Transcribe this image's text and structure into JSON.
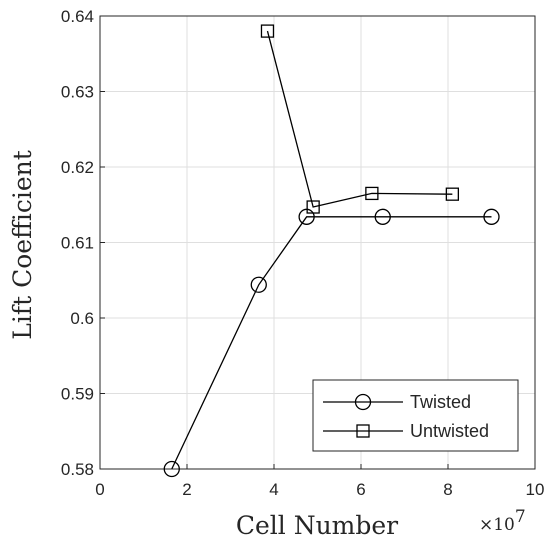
{
  "chart_data": {
    "type": "line",
    "title": "",
    "xlabel": "Cell Number",
    "ylabel": "Lift Coefficient",
    "x_multiplier_label": "×10",
    "x_multiplier_exponent": "7",
    "xlim": [
      0,
      10
    ],
    "ylim": [
      0.58,
      0.64
    ],
    "xticks": [
      0,
      2,
      4,
      6,
      8,
      10
    ],
    "yticks": [
      0.58,
      0.59,
      0.6,
      0.61,
      0.62,
      0.63,
      0.64
    ],
    "xtick_labels": [
      "0",
      "2",
      "4",
      "6",
      "8",
      "10"
    ],
    "ytick_labels": [
      "0.58",
      "0.59",
      "0.6",
      "0.61",
      "0.62",
      "0.63",
      "0.64"
    ],
    "grid": true,
    "legend_position": "bottom-right",
    "series": [
      {
        "name": "Twisted",
        "marker": "circle",
        "color": "#000000",
        "x": [
          1.65,
          3.65,
          4.75,
          6.5,
          9.0
        ],
        "y": [
          0.58,
          0.6044,
          0.6134,
          0.6134,
          0.6134
        ]
      },
      {
        "name": "Untwisted",
        "marker": "square",
        "color": "#000000",
        "x": [
          3.85,
          4.9,
          6.25,
          8.1
        ],
        "y": [
          0.638,
          0.6147,
          0.6165,
          0.6164
        ]
      }
    ]
  }
}
